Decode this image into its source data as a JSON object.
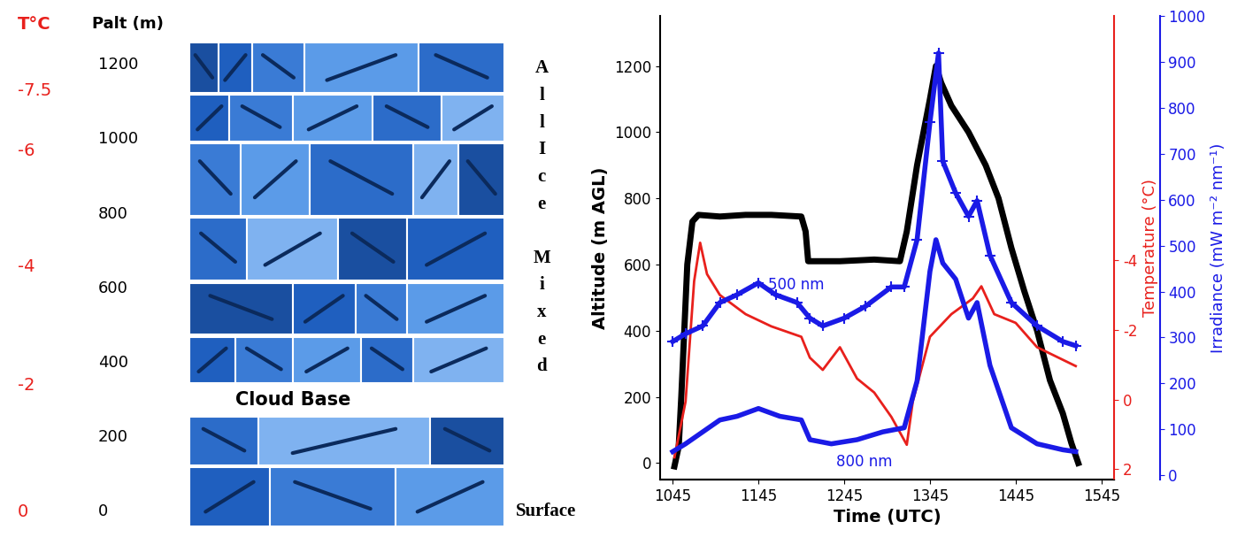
{
  "left_panel": {
    "temperature_header": "T°C",
    "altitude_header": "Palt (m)",
    "ylim": [
      -60,
      1330
    ],
    "altitude_ticks": [
      0,
      200,
      400,
      600,
      800,
      1000,
      1200
    ],
    "temperature_labels": [
      {
        "value": -7.5,
        "altitude": 1130
      },
      {
        "value": -6,
        "altitude": 968
      },
      {
        "value": -4,
        "altitude": 657
      },
      {
        "value": -2,
        "altitude": 339
      },
      {
        "value": 0,
        "altitude": 0
      }
    ],
    "side_labels": [
      "All Ice",
      "Mixed"
    ],
    "cloud_base": {
      "label": "Cloud Base",
      "altitude": 300
    },
    "surface": {
      "label": "Surface",
      "altitude": 0
    }
  },
  "chart_data": {
    "type": "line",
    "x_label": "Time (UTC)",
    "y_label": "Altitude (m AGL)",
    "y2_label": "Temperature (°C)",
    "y3_label": "Irradiance (mW m⁻² nm⁻¹)",
    "xlim": [
      1030,
      1560
    ],
    "xticks": [
      1045,
      1145,
      1245,
      1345,
      1445,
      1545
    ],
    "ylim": [
      -50,
      1350
    ],
    "yticks": [
      0,
      200,
      400,
      600,
      800,
      1000,
      1200
    ],
    "y2lim": [
      2.3,
      -11
    ],
    "y2ticks": [
      -4,
      -2,
      0,
      2
    ],
    "y3lim": [
      -10,
      1000
    ],
    "y3ticks": [
      0,
      100,
      200,
      300,
      400,
      500,
      600,
      700,
      800,
      900,
      1000
    ],
    "series": [
      {
        "color": "#000000",
        "line_style": "solid",
        "marker": "none",
        "x": [
          1047,
          1052,
          1055,
          1062,
          1068,
          1075,
          1100,
          1130,
          1160,
          1195,
          1200,
          1203,
          1240,
          1280,
          1310,
          1318,
          1330,
          1345,
          1352,
          1358,
          1370,
          1390,
          1410,
          1425,
          1440,
          1455,
          1470,
          1485,
          1500,
          1510,
          1518
        ],
        "values": [
          -10,
          50,
          200,
          600,
          730,
          750,
          745,
          750,
          750,
          745,
          700,
          610,
          610,
          615,
          610,
          700,
          900,
          1100,
          1200,
          1150,
          1080,
          1000,
          900,
          800,
          650,
          520,
          400,
          250,
          150,
          60,
          0
        ]
      },
      {
        "color": "#e8201c",
        "axis": "y2",
        "line_style": "solid",
        "marker": "none",
        "x": [
          1047,
          1060,
          1070,
          1077,
          1085,
          1100,
          1130,
          1160,
          1195,
          1205,
          1220,
          1240,
          1260,
          1280,
          1300,
          1318,
          1325,
          1345,
          1370,
          1395,
          1405,
          1420,
          1445,
          1470,
          1495,
          1515
        ],
        "values": [
          1.66,
          0.06,
          -3.4,
          -4.5,
          -3.6,
          -3.0,
          -2.45,
          -2.1,
          -1.8,
          -1.2,
          -0.85,
          -1.5,
          -0.6,
          -0.2,
          0.5,
          1.3,
          0.06,
          -1.8,
          -2.45,
          -2.9,
          -3.25,
          -2.45,
          -2.2,
          -1.5,
          -1.2,
          -0.96
        ]
      },
      {
        "name": "500 nm",
        "color": "#1a1ae6",
        "axis": "y3",
        "line_style": "solid",
        "marker": "plus",
        "x": [
          1045,
          1060,
          1080,
          1100,
          1120,
          1145,
          1165,
          1190,
          1205,
          1220,
          1245,
          1270,
          1300,
          1315,
          1330,
          1345,
          1355,
          1360,
          1375,
          1390,
          1400,
          1415,
          1440,
          1470,
          1500,
          1515
        ],
        "values": [
          291,
          308,
          325,
          376,
          393,
          419,
          393,
          376,
          342,
          325,
          342,
          368,
          410,
          410,
          513,
          769,
          920,
          684,
          615,
          564,
          598,
          479,
          376,
          325,
          291,
          282
        ]
      },
      {
        "name": "800 nm",
        "color": "#1a1ae6",
        "axis": "y3",
        "line_style": "solid",
        "marker": "none",
        "x": [
          1045,
          1060,
          1080,
          1100,
          1120,
          1145,
          1170,
          1195,
          1205,
          1230,
          1260,
          1290,
          1315,
          1330,
          1345,
          1352,
          1360,
          1375,
          1390,
          1400,
          1415,
          1440,
          1470,
          1500,
          1515
        ],
        "values": [
          51,
          68,
          94,
          120,
          128,
          145,
          128,
          120,
          77,
          68,
          77,
          94,
          103,
          205,
          444,
          513,
          462,
          427,
          342,
          376,
          239,
          103,
          68,
          55,
          51
        ]
      }
    ]
  }
}
